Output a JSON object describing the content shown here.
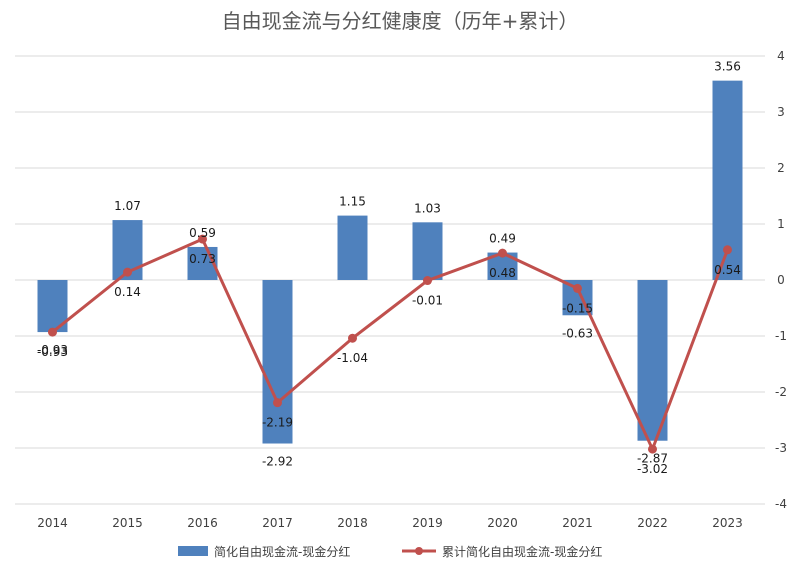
{
  "chart_data": {
    "type": "bar",
    "title": "自由现金流与分红健康度（历年+累计）",
    "categories": [
      "2014",
      "2015",
      "2016",
      "2017",
      "2018",
      "2019",
      "2020",
      "2021",
      "2022",
      "2023"
    ],
    "series": [
      {
        "name": "简化自由现金流-现金分红",
        "type": "bar",
        "color": "#4f81bd",
        "values": [
          -0.93,
          1.07,
          0.59,
          -2.92,
          1.15,
          1.03,
          0.49,
          -0.63,
          -2.87,
          3.56
        ],
        "labels": [
          "-0.93",
          "1.07",
          "0.59",
          "-2.92",
          "1.15",
          "1.03",
          "0.49",
          "-0.63",
          "-2.87",
          "3.56"
        ]
      },
      {
        "name": "累计简化自由现金流-现金分红",
        "type": "line",
        "color": "#c0504d",
        "values": [
          -0.93,
          0.14,
          0.73,
          -2.19,
          -1.04,
          -0.01,
          0.48,
          -0.15,
          -3.02,
          0.54
        ],
        "labels": [
          "-0.93",
          "0.14",
          "0.73",
          "-2.19",
          "-1.04",
          "-0.01",
          "0.48",
          "-0.15",
          "-3.02",
          "0.54"
        ]
      }
    ],
    "y_axis": {
      "position": "right",
      "ylim": [
        -4,
        4
      ],
      "ticks": [
        4,
        3,
        2,
        1,
        0,
        -1,
        -2,
        -3,
        -4
      ],
      "tick_labels": [
        "4",
        "3",
        "2",
        "1",
        "0",
        "-1",
        "-2",
        "-3",
        "-4"
      ]
    },
    "grid": true,
    "legend": "bottom"
  }
}
